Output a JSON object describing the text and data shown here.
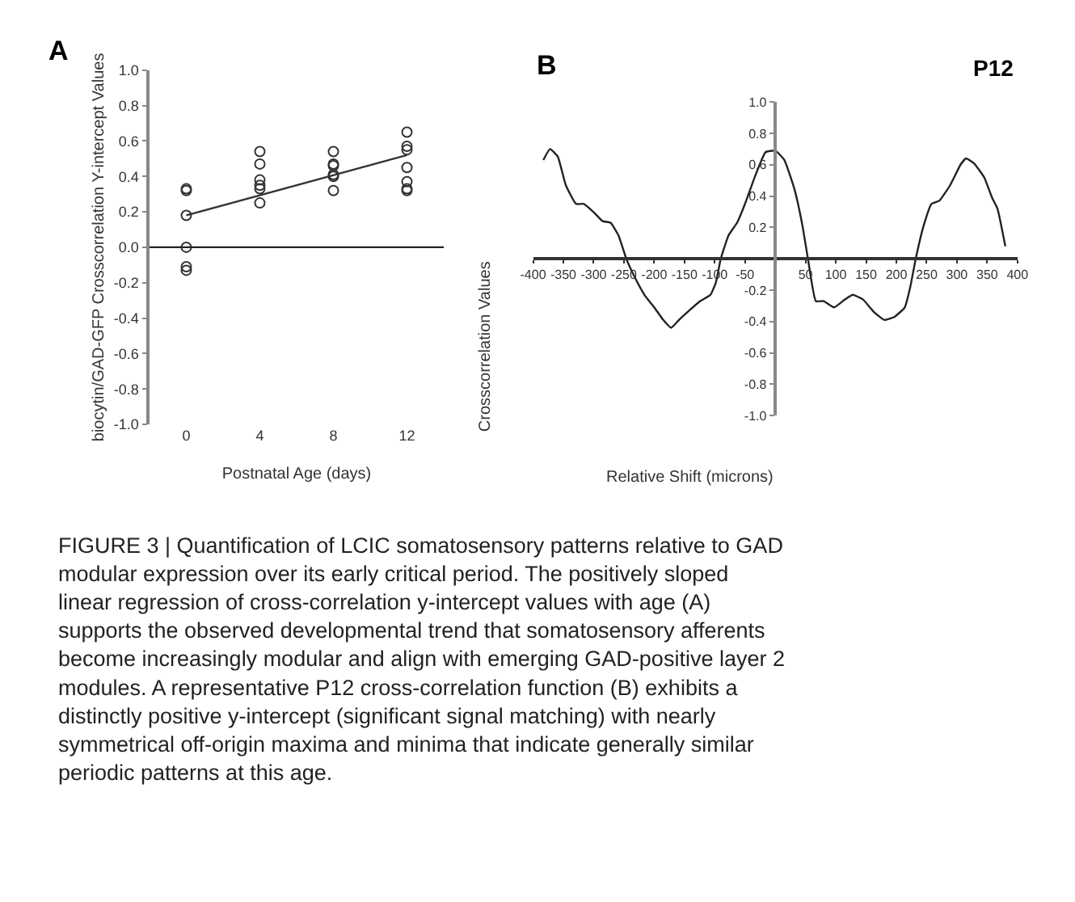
{
  "chart_data": [
    {
      "type": "scatter",
      "title": "A",
      "xlabel": "Postnatal Age (days)",
      "ylabel": "biocytin/GAD-GFP Crosscorrelation Y-intercept Values",
      "xlim": [
        -2,
        14
      ],
      "xticks": [
        0,
        4,
        8,
        12
      ],
      "ylim": [
        -1,
        1
      ],
      "yticks": [
        {
          "value": -1,
          "label": "-1.0"
        },
        {
          "value": -0.8,
          "label": "-0.8"
        },
        {
          "value": -0.6,
          "label": "-0.6"
        },
        {
          "value": -0.4,
          "label": "-0.4"
        },
        {
          "value": -0.2,
          "label": "-0.2"
        },
        {
          "value": 0,
          "label": "0.0"
        },
        {
          "value": 0.2,
          "label": "0.2"
        },
        {
          "value": 0.4,
          "label": "0.4"
        },
        {
          "value": 0.6,
          "label": "0.6"
        },
        {
          "value": 0.8,
          "label": "0.8"
        },
        {
          "value": 1,
          "label": "1.0"
        }
      ],
      "marker": "circle",
      "series": [
        {
          "color": "#333333",
          "x": [
            0,
            0,
            0,
            0,
            0,
            0,
            4,
            4,
            4,
            4,
            4,
            4,
            8,
            8,
            8,
            8,
            8,
            8,
            12,
            12,
            12,
            12,
            12,
            12,
            12
          ],
          "values": [
            0.33,
            0.32,
            0.18,
            0.0,
            -0.11,
            -0.13,
            0.54,
            0.47,
            0.38,
            0.35,
            0.33,
            0.25,
            0.54,
            0.47,
            0.46,
            0.41,
            0.4,
            0.32,
            0.65,
            0.57,
            0.55,
            0.45,
            0.37,
            0.33,
            0.32
          ]
        },
        {
          "type": "line",
          "marker": "none",
          "color": "#333333",
          "x": [
            0,
            12
          ],
          "values": [
            0.18,
            0.52
          ]
        }
      ],
      "ref_lines": [
        {
          "axis": "y",
          "value": 0,
          "color": "#222222"
        }
      ],
      "annotations": [
        "FIGURE 3 | Quantification of LCIC somatosensory patterns relative to GAD modular expression over its early critical period. The positively sloped linear regression of cross-correlation y-intercept values with age (A) supports the observed developmental trend that somatosensory afferents become increasingly modular and align with emerging GAD-positive layer 2 modules. A representative P12 cross-correlation function (B) exhibits a distinctly positive y-intercept (significant signal matching) with nearly symmetrical off-origin maxima and minima that indicate generally similar periodic patterns at this age."
      ]
    },
    {
      "type": "line",
      "title": "B",
      "subtitle": "P12",
      "xlabel": "Relative Shift (microns)",
      "ylabel": "Crosscorrelation Values",
      "xlim": [
        -400,
        400
      ],
      "xticks": [
        -400,
        -350,
        -300,
        -250,
        -200,
        -150,
        -100,
        -50,
        50,
        100,
        150,
        200,
        250,
        300,
        350,
        400
      ],
      "ylim": [
        -1,
        1
      ],
      "yticks": [
        {
          "value": -1,
          "label": "-1.0"
        },
        {
          "value": -0.8,
          "label": "-0.8"
        },
        {
          "value": -0.6,
          "label": "-0.6"
        },
        {
          "value": -0.4,
          "label": "-0.4"
        },
        {
          "value": -0.2,
          "label": "-0.2"
        },
        {
          "value": 0.2,
          "label": "0.2"
        },
        {
          "value": 0.4,
          "label": "0.4"
        },
        {
          "value": 0.6,
          "label": "0.6"
        },
        {
          "value": 0.8,
          "label": "0.8"
        },
        {
          "value": 1,
          "label": "1.0"
        }
      ],
      "marker": "none",
      "line_style": "solid",
      "series": [
        {
          "color": "#222222",
          "x": [
            -383,
            -372,
            -359,
            -346,
            -329,
            -316,
            -298,
            -285,
            -272,
            -259,
            -246,
            -233,
            -216,
            -198,
            -185,
            -172,
            -159,
            -142,
            -124,
            -107,
            -98,
            -90,
            -77,
            -63,
            -50,
            -33,
            -16,
            0,
            15,
            32,
            45,
            54,
            67,
            80,
            97,
            115,
            128,
            145,
            163,
            180,
            197,
            214,
            223,
            232,
            245,
            258,
            271,
            289,
            306,
            315,
            328,
            345,
            358,
            367,
            380
          ],
          "values": [
            0.63,
            0.7,
            0.65,
            0.47,
            0.35,
            0.35,
            0.29,
            0.24,
            0.23,
            0.15,
            0.0,
            -0.11,
            -0.23,
            -0.32,
            -0.39,
            -0.44,
            -0.39,
            -0.33,
            -0.27,
            -0.23,
            -0.15,
            0.0,
            0.15,
            0.23,
            0.35,
            0.53,
            0.68,
            0.69,
            0.63,
            0.44,
            0.21,
            0.0,
            -0.27,
            -0.27,
            -0.31,
            -0.26,
            -0.23,
            -0.26,
            -0.34,
            -0.39,
            -0.37,
            -0.31,
            -0.18,
            0.0,
            0.21,
            0.35,
            0.37,
            0.47,
            0.6,
            0.64,
            0.61,
            0.52,
            0.39,
            0.32,
            0.08
          ]
        }
      ]
    }
  ]
}
